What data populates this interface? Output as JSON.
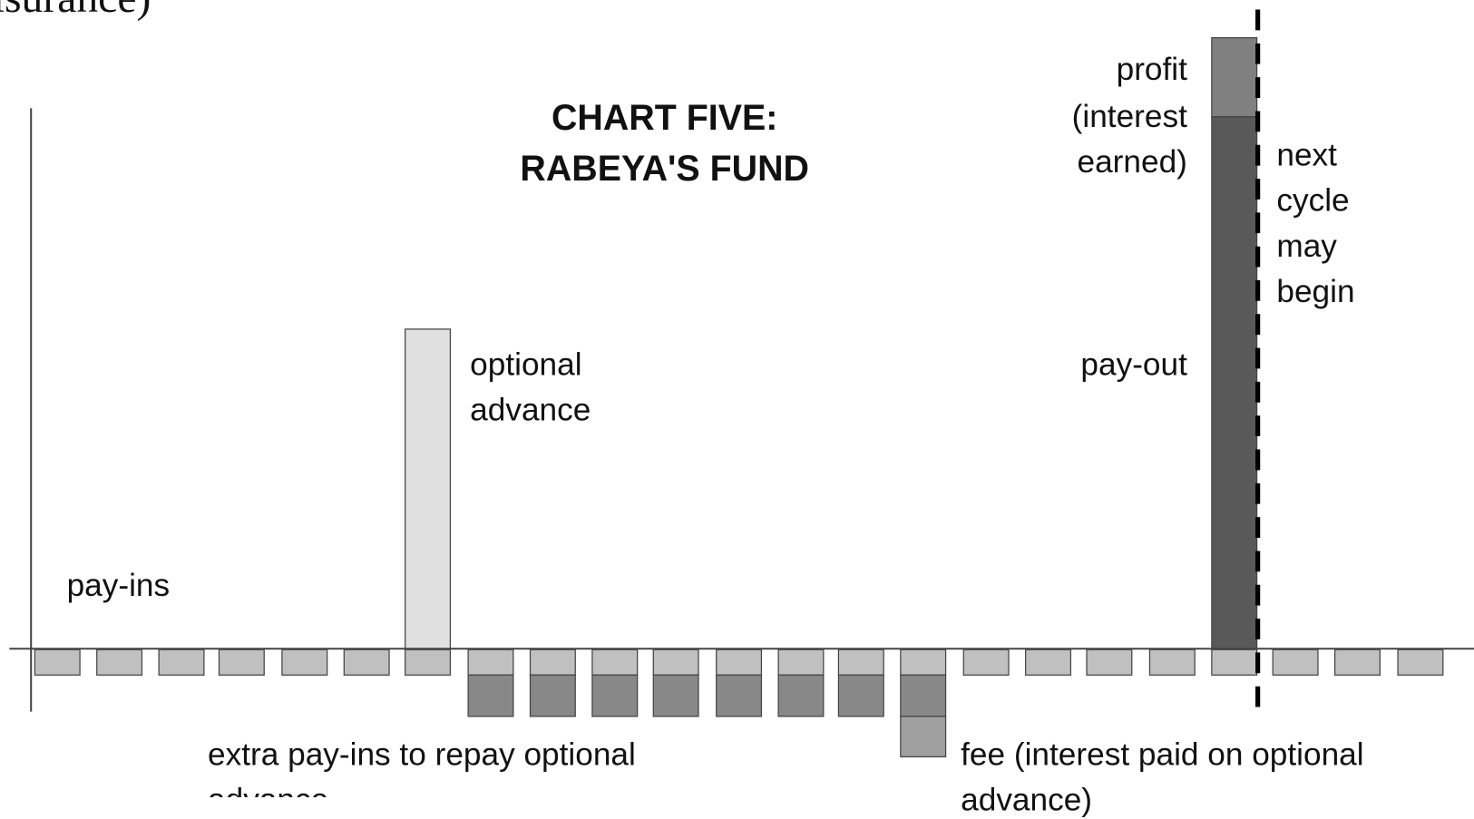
{
  "header_fragment": "isurance)",
  "title": [
    "CHART FIVE:",
    "RABEYA'S FUND"
  ],
  "labels": {
    "pay_ins": "pay-ins",
    "optional_advance": [
      "optional",
      "advance"
    ],
    "pay_out": "pay-out",
    "profit": [
      "profit",
      "(interest",
      "earned)"
    ],
    "next_cycle": [
      "next",
      "cycle",
      "may",
      "begin"
    ],
    "extra_pay_ins": [
      "extra pay-ins to repay optional",
      "advance"
    ],
    "fee": [
      "fee (interest paid on optional",
      "advance)"
    ]
  }
}
